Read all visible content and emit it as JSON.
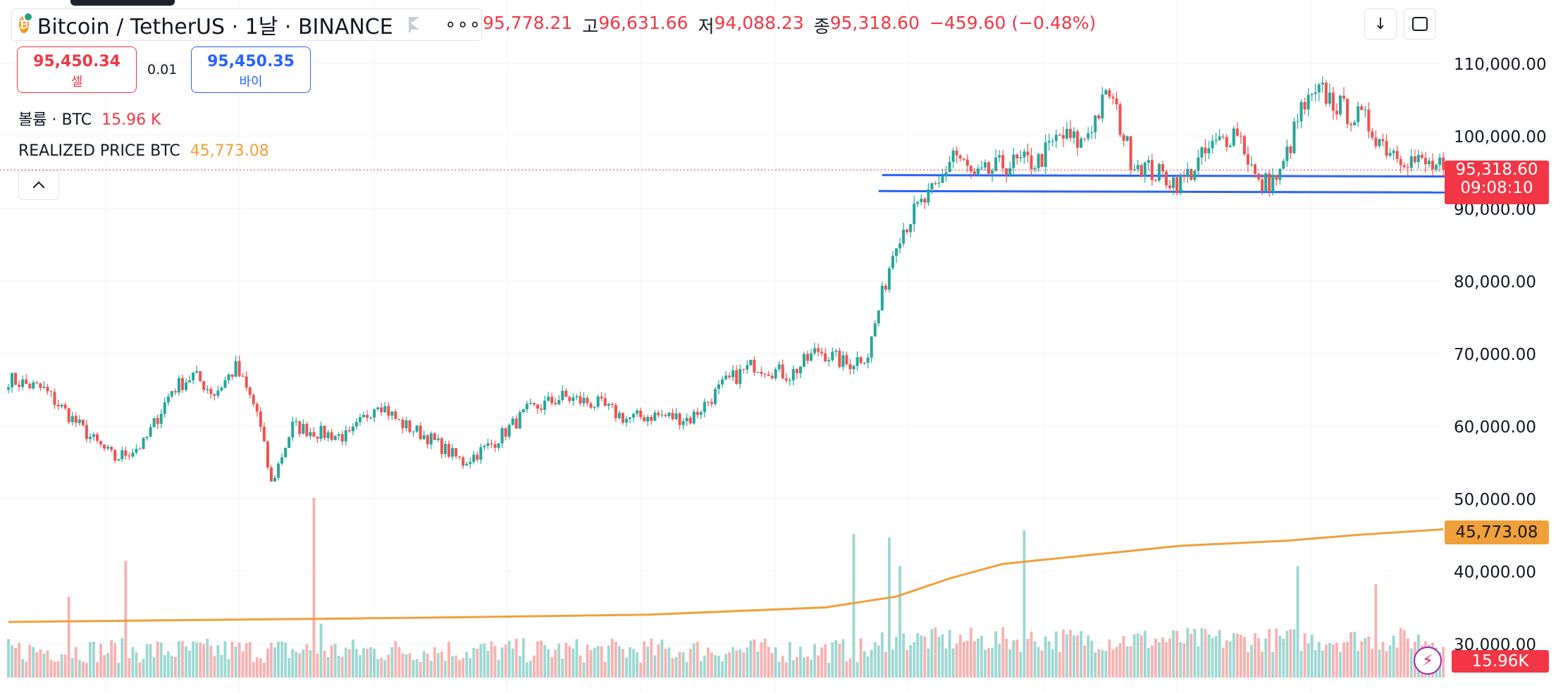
{
  "header": {
    "symbol_title": "Bitcoin / TetherUS · 1날 · BINANCE",
    "more_icon": "more-horizontal-icon",
    "ohlc": {
      "open_value": "95,778.21",
      "high_label": "고",
      "high_value": "96,631.66",
      "low_label": "저",
      "low_value": "94,088.23",
      "close_label": "종",
      "close_value": "95,318.60",
      "change": "−459.60 (−0.48%)"
    }
  },
  "trade": {
    "sell_price": "95,450.34",
    "sell_label": "셀",
    "spread": "0.01",
    "buy_price": "95,450.35",
    "buy_label": "바이"
  },
  "legends": {
    "volume_title": "볼륨 · BTC",
    "volume_value": "15.96 K",
    "realized_title": "REALIZED PRICE BTC",
    "realized_value": "45,773.08"
  },
  "price_axis": {
    "ticks": [
      "110,000.00",
      "100,000.00",
      "90,000.00",
      "80,000.00",
      "70,000.00",
      "60,000.00",
      "50,000.00",
      "40,000.00",
      "30,000.00"
    ],
    "last_price": "95,318.60",
    "countdown": "09:08:10",
    "realized_tag": "45,773.08",
    "volume_tag": "15.96K"
  },
  "colors": {
    "up": "#26a69a",
    "down": "#ef5350",
    "realized_line": "#f0a03b",
    "support_lines": "#2962ff"
  },
  "chart_data": {
    "type": "candlestick",
    "ylim": [
      28000,
      114000
    ],
    "price_anchors": [
      [
        0,
        66500
      ],
      [
        10,
        65000
      ],
      [
        16,
        62000
      ],
      [
        24,
        58000
      ],
      [
        30,
        55500
      ],
      [
        38,
        57500
      ],
      [
        46,
        65000
      ],
      [
        52,
        67000
      ],
      [
        58,
        64500
      ],
      [
        64,
        68000
      ],
      [
        70,
        62000
      ],
      [
        74,
        52000
      ],
      [
        80,
        60000
      ],
      [
        88,
        59000
      ],
      [
        96,
        58500
      ],
      [
        104,
        63500
      ],
      [
        110,
        60500
      ],
      [
        118,
        58500
      ],
      [
        128,
        55000
      ],
      [
        136,
        57500
      ],
      [
        146,
        62000
      ],
      [
        156,
        64000
      ],
      [
        166,
        63000
      ],
      [
        174,
        61000
      ],
      [
        182,
        61500
      ],
      [
        192,
        61000
      ],
      [
        202,
        66000
      ],
      [
        210,
        68500
      ],
      [
        220,
        67000
      ],
      [
        228,
        70500
      ],
      [
        236,
        68500
      ],
      [
        242,
        70000
      ],
      [
        250,
        86000
      ],
      [
        256,
        90000
      ],
      [
        262,
        93000
      ],
      [
        266,
        98000
      ],
      [
        272,
        94000
      ],
      [
        280,
        96000
      ],
      [
        290,
        96500
      ],
      [
        296,
        100000
      ],
      [
        302,
        99000
      ],
      [
        310,
        106000
      ],
      [
        316,
        97000
      ],
      [
        322,
        95000
      ],
      [
        330,
        93500
      ],
      [
        338,
        98000
      ],
      [
        346,
        101000
      ],
      [
        352,
        93000
      ],
      [
        358,
        94500
      ],
      [
        364,
        103500
      ],
      [
        370,
        106000
      ],
      [
        376,
        103500
      ],
      [
        382,
        102000
      ],
      [
        388,
        98500
      ],
      [
        396,
        96500
      ],
      [
        404,
        95318
      ]
    ],
    "realized_anchors": [
      [
        0,
        33000
      ],
      [
        60,
        33300
      ],
      [
        120,
        33600
      ],
      [
        180,
        34000
      ],
      [
        230,
        35000
      ],
      [
        250,
        36500
      ],
      [
        265,
        39000
      ],
      [
        280,
        41000
      ],
      [
        300,
        42000
      ],
      [
        330,
        43500
      ],
      [
        360,
        44200
      ],
      [
        380,
        45000
      ],
      [
        404,
        45773
      ]
    ],
    "support_levels": [
      {
        "from": 246,
        "to": 406,
        "price": 94600
      },
      {
        "from": 245,
        "to": 406,
        "price": 92400
      }
    ],
    "volume_spikes": [
      [
        17,
        0.45
      ],
      [
        33,
        0.65
      ],
      [
        86,
        1.0
      ],
      [
        88,
        0.3
      ],
      [
        238,
        0.8
      ],
      [
        248,
        0.78
      ],
      [
        251,
        0.62
      ],
      [
        286,
        0.82
      ],
      [
        363,
        0.62
      ],
      [
        385,
        0.52
      ]
    ]
  }
}
